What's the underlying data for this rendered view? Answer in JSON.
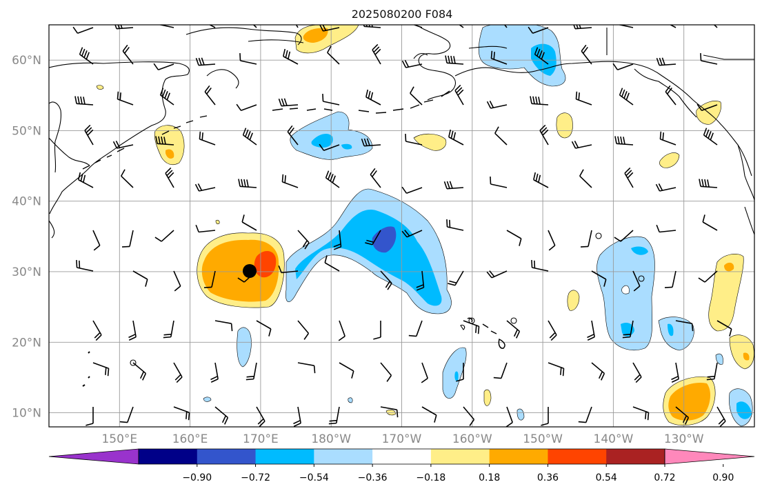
{
  "title": "2025080200 F084",
  "map": {
    "lat_range": [
      8,
      65
    ],
    "lon_range": [
      140,
      240
    ],
    "gridlines": true,
    "lat_ticks": [
      "10°N",
      "20°N",
      "30°N",
      "40°N",
      "50°N",
      "60°N"
    ],
    "lon_ticks": [
      "150°E",
      "160°E",
      "170°E",
      "180°W",
      "170°W",
      "160°W",
      "150°W",
      "140°W",
      "130°W"
    ],
    "storm_center": {
      "lat": 30,
      "lon": 169,
      "symbol": "filled-circle"
    }
  },
  "colorbar": {
    "ticks": [
      "−0.90",
      "−0.72",
      "−0.54",
      "−0.36",
      "−0.18",
      "0.18",
      "0.36",
      "0.54",
      "0.72",
      "0.90"
    ],
    "colors": [
      "#9933cc",
      "#000088",
      "#3355cc",
      "#00bbff",
      "#aaddff",
      "#ffffff",
      "#ffee88",
      "#ffaa00",
      "#ff4400",
      "#aa2222",
      "#ff88bb"
    ],
    "extend": "both"
  }
}
